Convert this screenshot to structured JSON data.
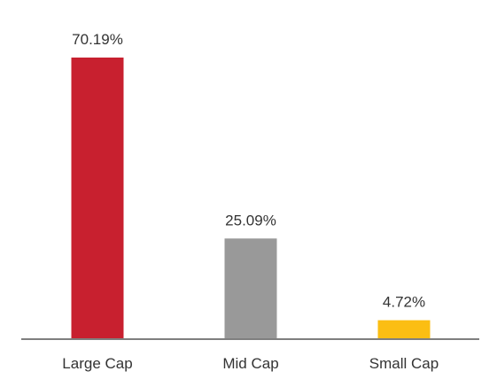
{
  "chart_data": {
    "type": "bar",
    "categories": [
      "Large Cap",
      "Mid Cap",
      "Small Cap"
    ],
    "values": [
      70.19,
      25.09,
      4.72
    ],
    "value_labels": [
      "70.19%",
      "25.09%",
      "4.72%"
    ],
    "colors": [
      "#c8202f",
      "#999999",
      "#fbbe13"
    ],
    "axis_color": "#7f7f7f",
    "ylim": [
      0,
      70.19
    ],
    "title": "",
    "xlabel": "",
    "ylabel": ""
  }
}
